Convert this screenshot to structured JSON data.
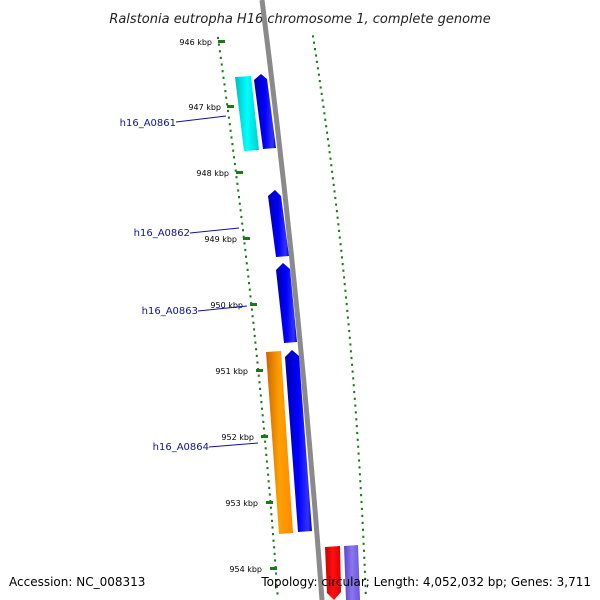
{
  "title": "Ralstonia eutropha H16 chromosome 1, complete genome",
  "accession_text": "Accession: NC_008313",
  "topology_text": "Topology: circular; Length: 4,052,032 bp; Genes: 3,711",
  "ticks": [
    "946 kbp",
    "947 kbp",
    "948 kbp",
    "949 kbp",
    "950 kbp",
    "951 kbp",
    "952 kbp",
    "953 kbp",
    "954 kbp"
  ],
  "gene_labels": [
    "h16_A0861",
    "h16_A0862",
    "h16_A0863",
    "h16_A0864"
  ],
  "colors": {
    "tick": "#1a7a1a",
    "backbone": "#8a8a8a",
    "cds_blue": "#0000dd",
    "cds_cyan": "#00e0e0",
    "cds_orange": "#ff9900",
    "cds_red": "#ee0000",
    "cds_purple": "#7a66dd",
    "label_line": "#1010a0"
  }
}
